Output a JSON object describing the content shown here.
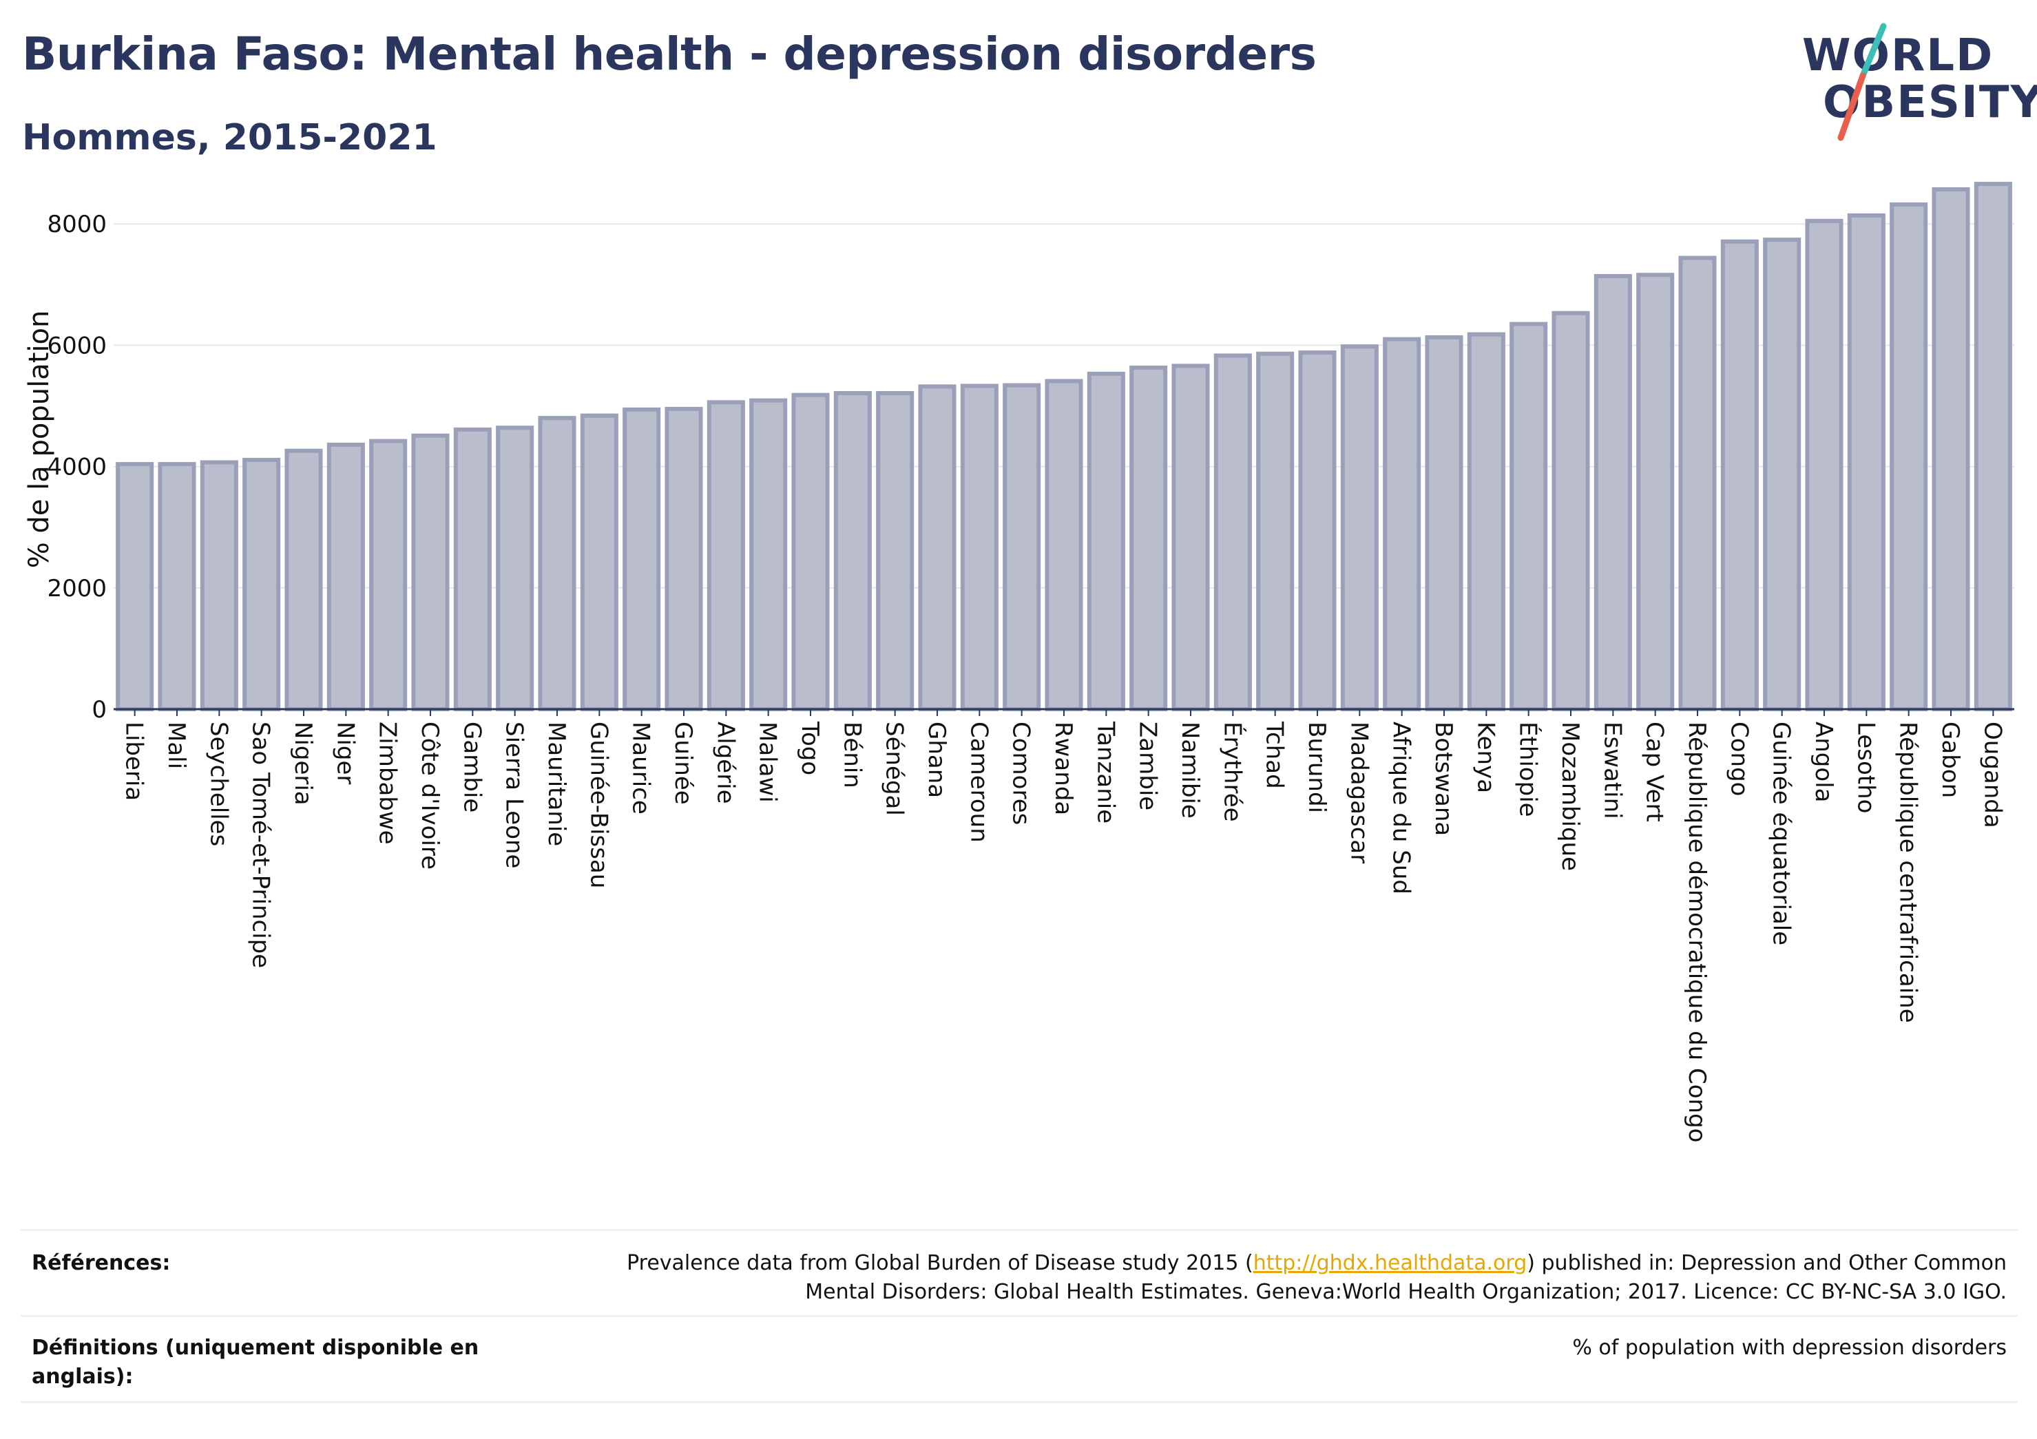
{
  "header": {
    "title": "Burkina Faso: Mental health - depression disorders",
    "subtitle": "Hommes, 2015-2021"
  },
  "logo": {
    "line1": "WORLD",
    "line2": "OBESITY",
    "accent_colors": [
      "#3dbfb8",
      "#e8604c"
    ]
  },
  "chart_data": {
    "type": "bar",
    "title": "",
    "ylabel": "% de la population",
    "xlabel": "",
    "ylim": [
      0,
      8900
    ],
    "yticks": [
      0,
      2000,
      4000,
      6000,
      8000
    ],
    "grid": true,
    "bar_color": "#b9bdcc",
    "bar_edge_color": "#9aa0b8",
    "categories": [
      "Liberia",
      "Mali",
      "Seychelles",
      "Sao Tomé-et-Principe",
      "Nigeria",
      "Niger",
      "Zimbabwe",
      "Côte d'Ivoire",
      "Gambie",
      "Sierra Leone",
      "Mauritanie",
      "Guinée-Bissau",
      "Maurice",
      "Guinée",
      "Algérie",
      "Malawi",
      "Togo",
      "Bénin",
      "Sénégal",
      "Ghana",
      "Cameroun",
      "Comores",
      "Rwanda",
      "Tanzanie",
      "Zambie",
      "Namibie",
      "Érythrée",
      "Tchad",
      "Burundi",
      "Madagascar",
      "Afrique du Sud",
      "Botswana",
      "Kenya",
      "Éthiopie",
      "Mozambique",
      "Eswatini",
      "Cap Vert",
      "République démocratique du Congo",
      "Congo",
      "Guinée équatoriale",
      "Angola",
      "Lesotho",
      "République centrafricaine",
      "Gabon",
      "Ouganda"
    ],
    "values": [
      4040,
      4040,
      4070,
      4110,
      4260,
      4360,
      4420,
      4510,
      4610,
      4640,
      4800,
      4840,
      4940,
      4950,
      5060,
      5090,
      5180,
      5210,
      5210,
      5320,
      5330,
      5340,
      5410,
      5530,
      5630,
      5660,
      5830,
      5860,
      5880,
      5980,
      6100,
      6130,
      6180,
      6350,
      6530,
      7140,
      7160,
      7440,
      7710,
      7740,
      8050,
      8140,
      8320,
      8570,
      8660
    ]
  },
  "footer": {
    "references_label": "Références:",
    "references_text_before": "Prevalence data from Global Burden of Disease study 2015 (",
    "references_link": "http://ghdx.healthdata.org",
    "references_text_after": ") published in: Depression and Other Common",
    "references_line2": "Mental Disorders: Global Health Estimates. Geneva:World Health Organization; 2017. Licence: CC BY-NC-SA 3.0 IGO.",
    "definitions_label": "Définitions (uniquement disponible en anglais):",
    "definitions_text": "% of population with depression disorders"
  }
}
